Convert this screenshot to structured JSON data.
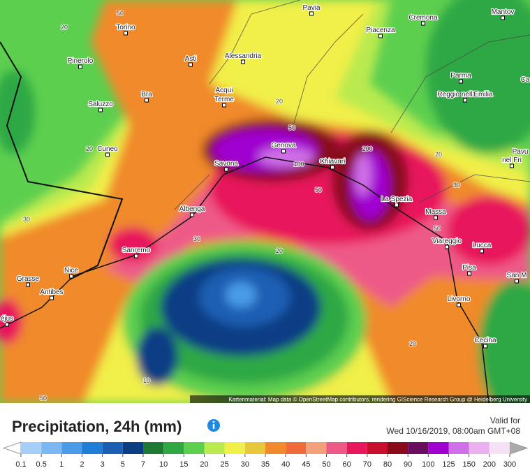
{
  "map": {
    "cities": [
      "Pavia",
      "Cremona",
      "Mantov",
      "Torino",
      "Piacenza",
      "Asti",
      "Alessandria",
      "Pinerolo",
      "Parma",
      "Acqui",
      "Terme",
      "Bra",
      "Reggio nell'Emilia",
      "Saluzzo",
      "Genova",
      "Cuneo",
      "Pavu",
      "nel Fri",
      "Savona",
      "Chiavari",
      "La Spezia",
      "Albenga",
      "Massa",
      "Viareggio",
      "Lucca",
      "Sanremo",
      "Nice",
      "Pisa",
      "San M",
      "Grasse",
      "Antibes",
      "Livorno",
      "éjus",
      "Cecina",
      "Ca"
    ],
    "contour_labels": [
      "50",
      "20",
      "20",
      "50",
      "20",
      "100",
      "200",
      "50",
      "30",
      "30",
      "20",
      "30",
      "20",
      "50",
      "20",
      "10",
      "50"
    ],
    "attribution": "Kartenmaterial: Map data © OpenStreetMap contributors, rendering GIScience Research Group @ Heidelberg University"
  },
  "header": {
    "title": "Precipitation, 24h (mm)",
    "valid_label": "Valid for",
    "valid_time": "Wed 10/16/2019, 08:00am GMT+08"
  },
  "legend": {
    "ticks": [
      0.1,
      0.5,
      1,
      2,
      3,
      5,
      7,
      10,
      15,
      20,
      25,
      30,
      35,
      40,
      45,
      50,
      60,
      70,
      80,
      90,
      100,
      125,
      150,
      200,
      300
    ]
  }
}
